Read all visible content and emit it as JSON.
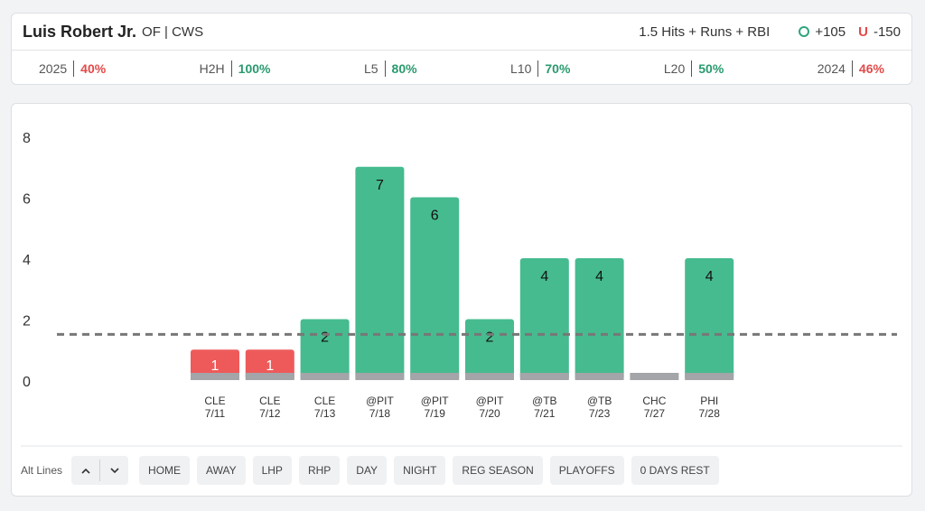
{
  "header": {
    "player_name": "Luis Robert Jr.",
    "player_meta": "OF | CWS",
    "prop_line": "1.5 Hits + Runs + RBI",
    "over_label": "+105",
    "under_label": "-150",
    "under_letter": "U",
    "over_icon": "circle-o-icon"
  },
  "splits": [
    {
      "label": "2025",
      "value": "40%",
      "status": "neg"
    },
    {
      "label": "H2H",
      "value": "100%",
      "status": "pos"
    },
    {
      "label": "L5",
      "value": "80%",
      "status": "pos"
    },
    {
      "label": "L10",
      "value": "70%",
      "status": "pos"
    },
    {
      "label": "L20",
      "value": "50%",
      "status": "pos"
    },
    {
      "label": "2024",
      "value": "46%",
      "status": "neg"
    }
  ],
  "chart_data": {
    "type": "bar",
    "categories": [
      "CLE 7/11",
      "CLE 7/12",
      "CLE 7/13",
      "@PIT 7/18",
      "@PIT 7/19",
      "@PIT 7/20",
      "@TB 7/21",
      "@TB 7/23",
      "CHC 7/27",
      "PHI 7/28"
    ],
    "opponents": [
      "CLE",
      "CLE",
      "CLE",
      "@PIT",
      "@PIT",
      "@PIT",
      "@TB",
      "@TB",
      "CHC",
      "PHI"
    ],
    "dates": [
      "7/11",
      "7/12",
      "7/13",
      "7/18",
      "7/19",
      "7/20",
      "7/21",
      "7/23",
      "7/27",
      "7/28"
    ],
    "values": [
      1,
      1,
      2,
      7,
      6,
      2,
      4,
      4,
      0,
      4
    ],
    "line": 1.5,
    "ylim": [
      0,
      8
    ],
    "yticks": [
      0,
      2,
      4,
      6,
      8
    ],
    "grid": false,
    "title": "",
    "xlabel": "",
    "ylabel": "",
    "colors": {
      "over": "#46bb8f",
      "under": "#ee5a5a",
      "base": "#a3a5a8",
      "line": "#777777"
    }
  },
  "filters": {
    "alt_lines_label": "Alt Lines",
    "up_icon": "chevron-up-icon",
    "down_icon": "chevron-down-icon",
    "chips": [
      "HOME",
      "AWAY",
      "LHP",
      "RHP",
      "DAY",
      "NIGHT",
      "REG SEASON",
      "PLAYOFFS",
      "0 DAYS REST"
    ]
  }
}
